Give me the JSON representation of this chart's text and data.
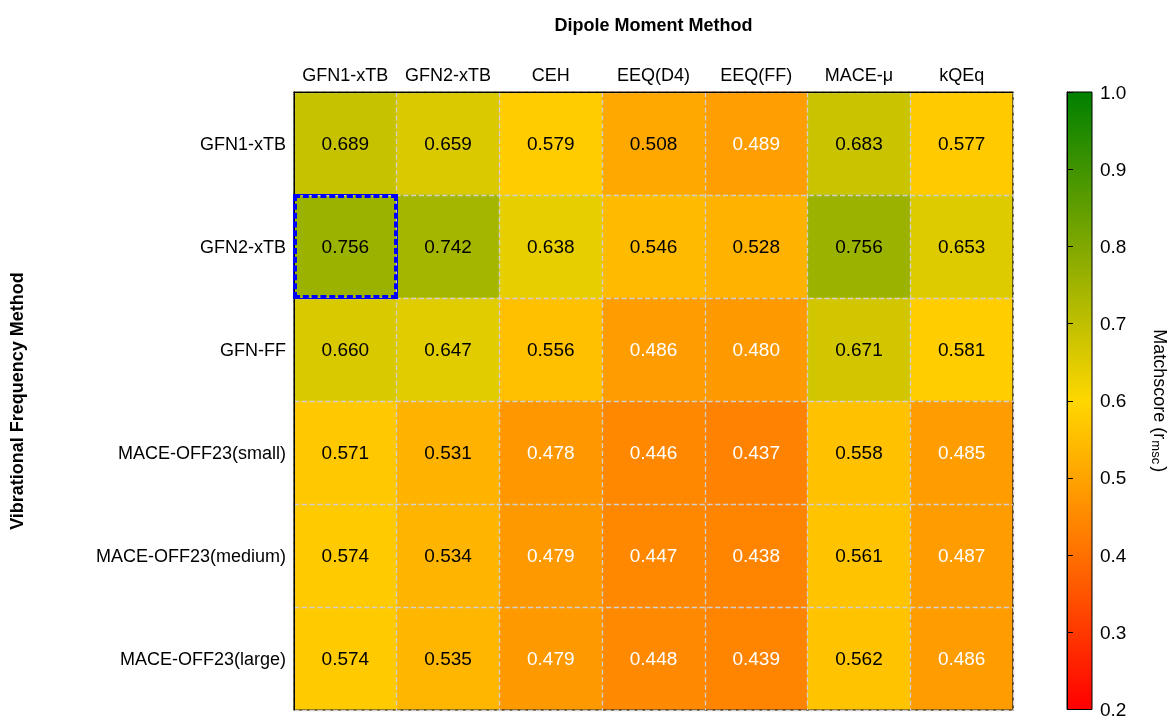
{
  "chart_data": {
    "type": "heatmap",
    "xlabel": "Dipole Moment Method",
    "ylabel": "Vibrational Frequency Method",
    "clabel": "Matchscore (r$_{msc}$)",
    "categories": [
      "GFN1-xTB",
      "GFN2-xTB",
      "CEH",
      "EEQ(D4)",
      "EEQ(FF)",
      "MACE-μ",
      "kQEq"
    ],
    "y_categories": [
      "GFN1-xTB",
      "GFN2-xTB",
      "GFN-FF",
      "MACE-OFF23(small)",
      "MACE-OFF23(medium)",
      "MACE-OFF23(large)"
    ],
    "cells": [
      [
        0.689,
        0.659,
        0.579,
        0.508,
        0.489,
        0.683,
        0.577
      ],
      [
        0.756,
        0.742,
        0.638,
        0.546,
        0.528,
        0.756,
        0.653
      ],
      [
        0.66,
        0.647,
        0.556,
        0.486,
        0.48,
        0.671,
        0.581
      ],
      [
        0.571,
        0.531,
        0.478,
        0.446,
        0.437,
        0.558,
        0.485
      ],
      [
        0.574,
        0.534,
        0.479,
        0.447,
        0.438,
        0.561,
        0.487
      ],
      [
        0.574,
        0.535,
        0.479,
        0.448,
        0.439,
        0.562,
        0.486
      ]
    ],
    "cell_labels": [
      [
        "0.689",
        "0.659",
        "0.579",
        "0.508",
        "0.489",
        "0.683",
        "0.577"
      ],
      [
        "0.756",
        "0.742",
        "0.638",
        "0.546",
        "0.528",
        "0.756",
        "0.653"
      ],
      [
        "0.660",
        "0.647",
        "0.556",
        "0.486",
        "0.480",
        "0.671",
        "0.581"
      ],
      [
        "0.571",
        "0.531",
        "0.478",
        "0.446",
        "0.437",
        "0.558",
        "0.485"
      ],
      [
        "0.574",
        "0.534",
        "0.479",
        "0.447",
        "0.438",
        "0.561",
        "0.487"
      ],
      [
        "0.574",
        "0.535",
        "0.479",
        "0.448",
        "0.439",
        "0.562",
        "0.486"
      ]
    ],
    "clim": [
      0.2,
      1.0
    ],
    "cticks": [
      {
        "value": 0.2,
        "label": "0.2"
      },
      {
        "value": 0.3,
        "label": "0.3"
      },
      {
        "value": 0.4,
        "label": "0.4"
      },
      {
        "value": 0.5,
        "label": "0.5"
      },
      {
        "value": 0.6,
        "label": "0.6"
      },
      {
        "value": 0.7,
        "label": "0.7"
      },
      {
        "value": 0.8,
        "label": "0.8"
      },
      {
        "value": 0.9,
        "label": "0.9"
      },
      {
        "value": 1.0,
        "label": "1.0"
      }
    ],
    "grid": true
  }
}
